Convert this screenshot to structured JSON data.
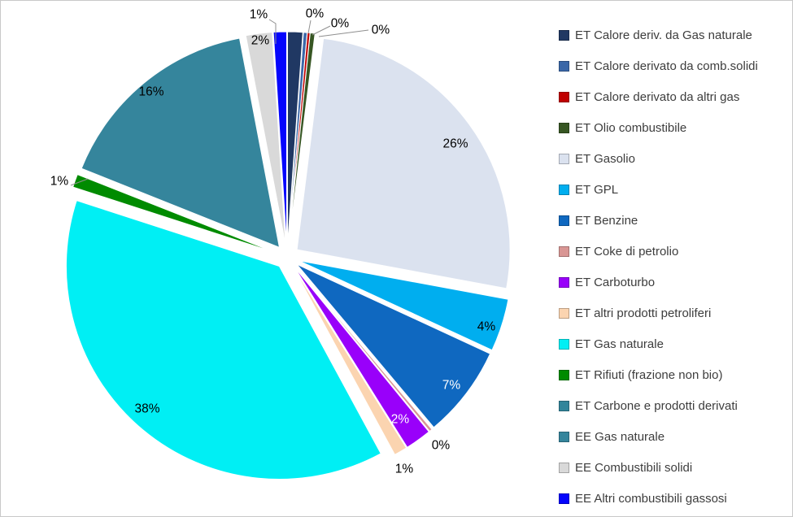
{
  "canvas": {
    "background": "#FFFFFF",
    "border_color": "#C9C9C9",
    "leader_line_color": "#8F8F8F"
  },
  "chart_data": {
    "type": "pie",
    "title": "",
    "legend_position": "right",
    "start_angle_deg": 0,
    "direction": "clockwise",
    "exploded": true,
    "slices": [
      {
        "id": "et-calore-gas-naturale",
        "label": "ET Calore deriv. da Gas naturale",
        "value_pct": 1,
        "data_label": "",
        "data_label_color": "#000000",
        "color": "#203863"
      },
      {
        "id": "et-calore-comb-solidi",
        "label": "ET Calore derivato da comb.solidi",
        "value_pct": 0,
        "data_label": "0%",
        "data_label_color": "#000000",
        "color": "#3A67A8"
      },
      {
        "id": "et-calore-altri-gas",
        "label": "ET Calore derivato da altri gas",
        "value_pct": 0,
        "data_label": "0%",
        "data_label_color": "#000000",
        "color": "#C00000"
      },
      {
        "id": "et-olio-combustibile",
        "label": "ET Olio combustibile",
        "value_pct": 0,
        "data_label": "0%",
        "data_label_color": "#000000",
        "color": "#375623"
      },
      {
        "id": "et-gasolio",
        "label": "ET Gasolio",
        "value_pct": 26,
        "data_label": "26%",
        "data_label_color": "#000000",
        "color": "#DBE2EF"
      },
      {
        "id": "et-gpl",
        "label": "ET GPL",
        "value_pct": 4,
        "data_label": "4%",
        "data_label_color": "#000000",
        "color": "#00AEEF"
      },
      {
        "id": "et-benzine",
        "label": "ET Benzine",
        "value_pct": 7,
        "data_label": "7%",
        "data_label_color": "#FFFFFF",
        "color": "#0F68C0"
      },
      {
        "id": "et-coke-di-petrolio",
        "label": "ET Coke di petrolio",
        "value_pct": 0,
        "data_label": "0%",
        "data_label_color": "#000000",
        "color": "#D99694"
      },
      {
        "id": "et-carboturbo",
        "label": "ET Carboturbo",
        "value_pct": 2,
        "data_label": "2%",
        "data_label_color": "#FFFFFF",
        "color": "#9900FA"
      },
      {
        "id": "et-altri-prodotti-petroliferi",
        "label": "ET altri prodotti petroliferi",
        "value_pct": 1,
        "data_label": "1%",
        "data_label_color": "#000000",
        "color": "#FBD4B0"
      },
      {
        "id": "et-gas-naturale",
        "label": "ET Gas naturale",
        "value_pct": 38,
        "data_label": "38%",
        "data_label_color": "#000000",
        "color": "#00EFF4"
      },
      {
        "id": "et-rifiuti",
        "label": "ET Rifiuti (frazione non bio)",
        "value_pct": 1,
        "data_label": "1%",
        "data_label_color": "#000000",
        "color": "#008B00"
      },
      {
        "id": "et-carbone",
        "label": "ET Carbone e prodotti derivati",
        "value_pct": 0,
        "data_label": "",
        "data_label_color": "#000000",
        "color": "#31859B"
      },
      {
        "id": "ee-gas-naturale",
        "label": "EE Gas naturale",
        "value_pct": 16,
        "data_label": "16%",
        "data_label_color": "#000000",
        "color": "#35859C"
      },
      {
        "id": "ee-combustibili-solidi",
        "label": "EE Combustibili solidi",
        "value_pct": 2,
        "data_label": "2%",
        "data_label_color": "#000000",
        "color": "#D9D9D9"
      },
      {
        "id": "ee-altri-combustibili-gassosi",
        "label": "EE Altri combustibili gassosi",
        "value_pct": 1,
        "data_label": "1%",
        "data_label_color": "#000000",
        "color": "#0505FD"
      }
    ]
  }
}
